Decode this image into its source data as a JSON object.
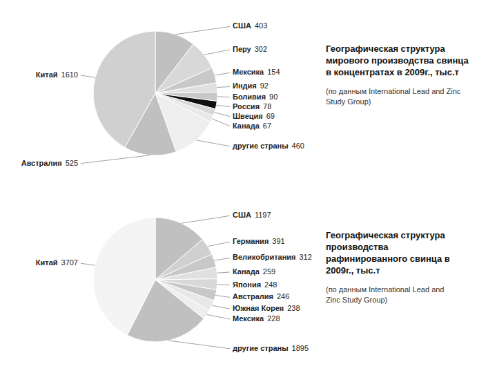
{
  "chart_data": [
    {
      "type": "pie",
      "title": "Географическая структура\nмирового производства свинца\nв концентратах в 2009г., тыс.т",
      "subtitle": "(по данным International Lead and Zinc\nStudy Group)",
      "categories": [
        "США",
        "Перу",
        "Мексика",
        "Индия",
        "Боливия",
        "Россия",
        "Швеция",
        "Канада",
        "другие страны",
        "Австралия",
        "Китай"
      ],
      "values": [
        403,
        302,
        154,
        92,
        90,
        78,
        69,
        67,
        460,
        525,
        1610
      ],
      "colors": [
        "#c0c0c0",
        "#d8d8d8",
        "#c8c8c8",
        "#e0e0e0",
        "#c8c8c8",
        "#101010",
        "#d8d8d8",
        "#e8e8e8",
        "#eeeeee",
        "#c0c0c0",
        "#d0d0d0"
      ],
      "data_labels": true
    },
    {
      "type": "pie",
      "title": "Географическая структура\nпроизводства\nрафинированного свинца в\n2009г., тыс.т",
      "subtitle": "(по данным International Lead and\nZinc Study Group)",
      "categories": [
        "США",
        "Германия",
        "Великобритания",
        "Канада",
        "Япония",
        "Австралия",
        "Южная Корея",
        "Мексика",
        "другие страны",
        "Китай"
      ],
      "values": [
        1197,
        391,
        312,
        259,
        248,
        246,
        238,
        228,
        1895,
        3707
      ],
      "colors": [
        "#c0c0c0",
        "#d0d0d0",
        "#c8c8c8",
        "#e0e0e0",
        "#d8d8d8",
        "#c8c8c8",
        "#e8e8e8",
        "#eeeeee",
        "#c0c0c0",
        "#f4f4f4"
      ],
      "data_labels": true
    }
  ]
}
